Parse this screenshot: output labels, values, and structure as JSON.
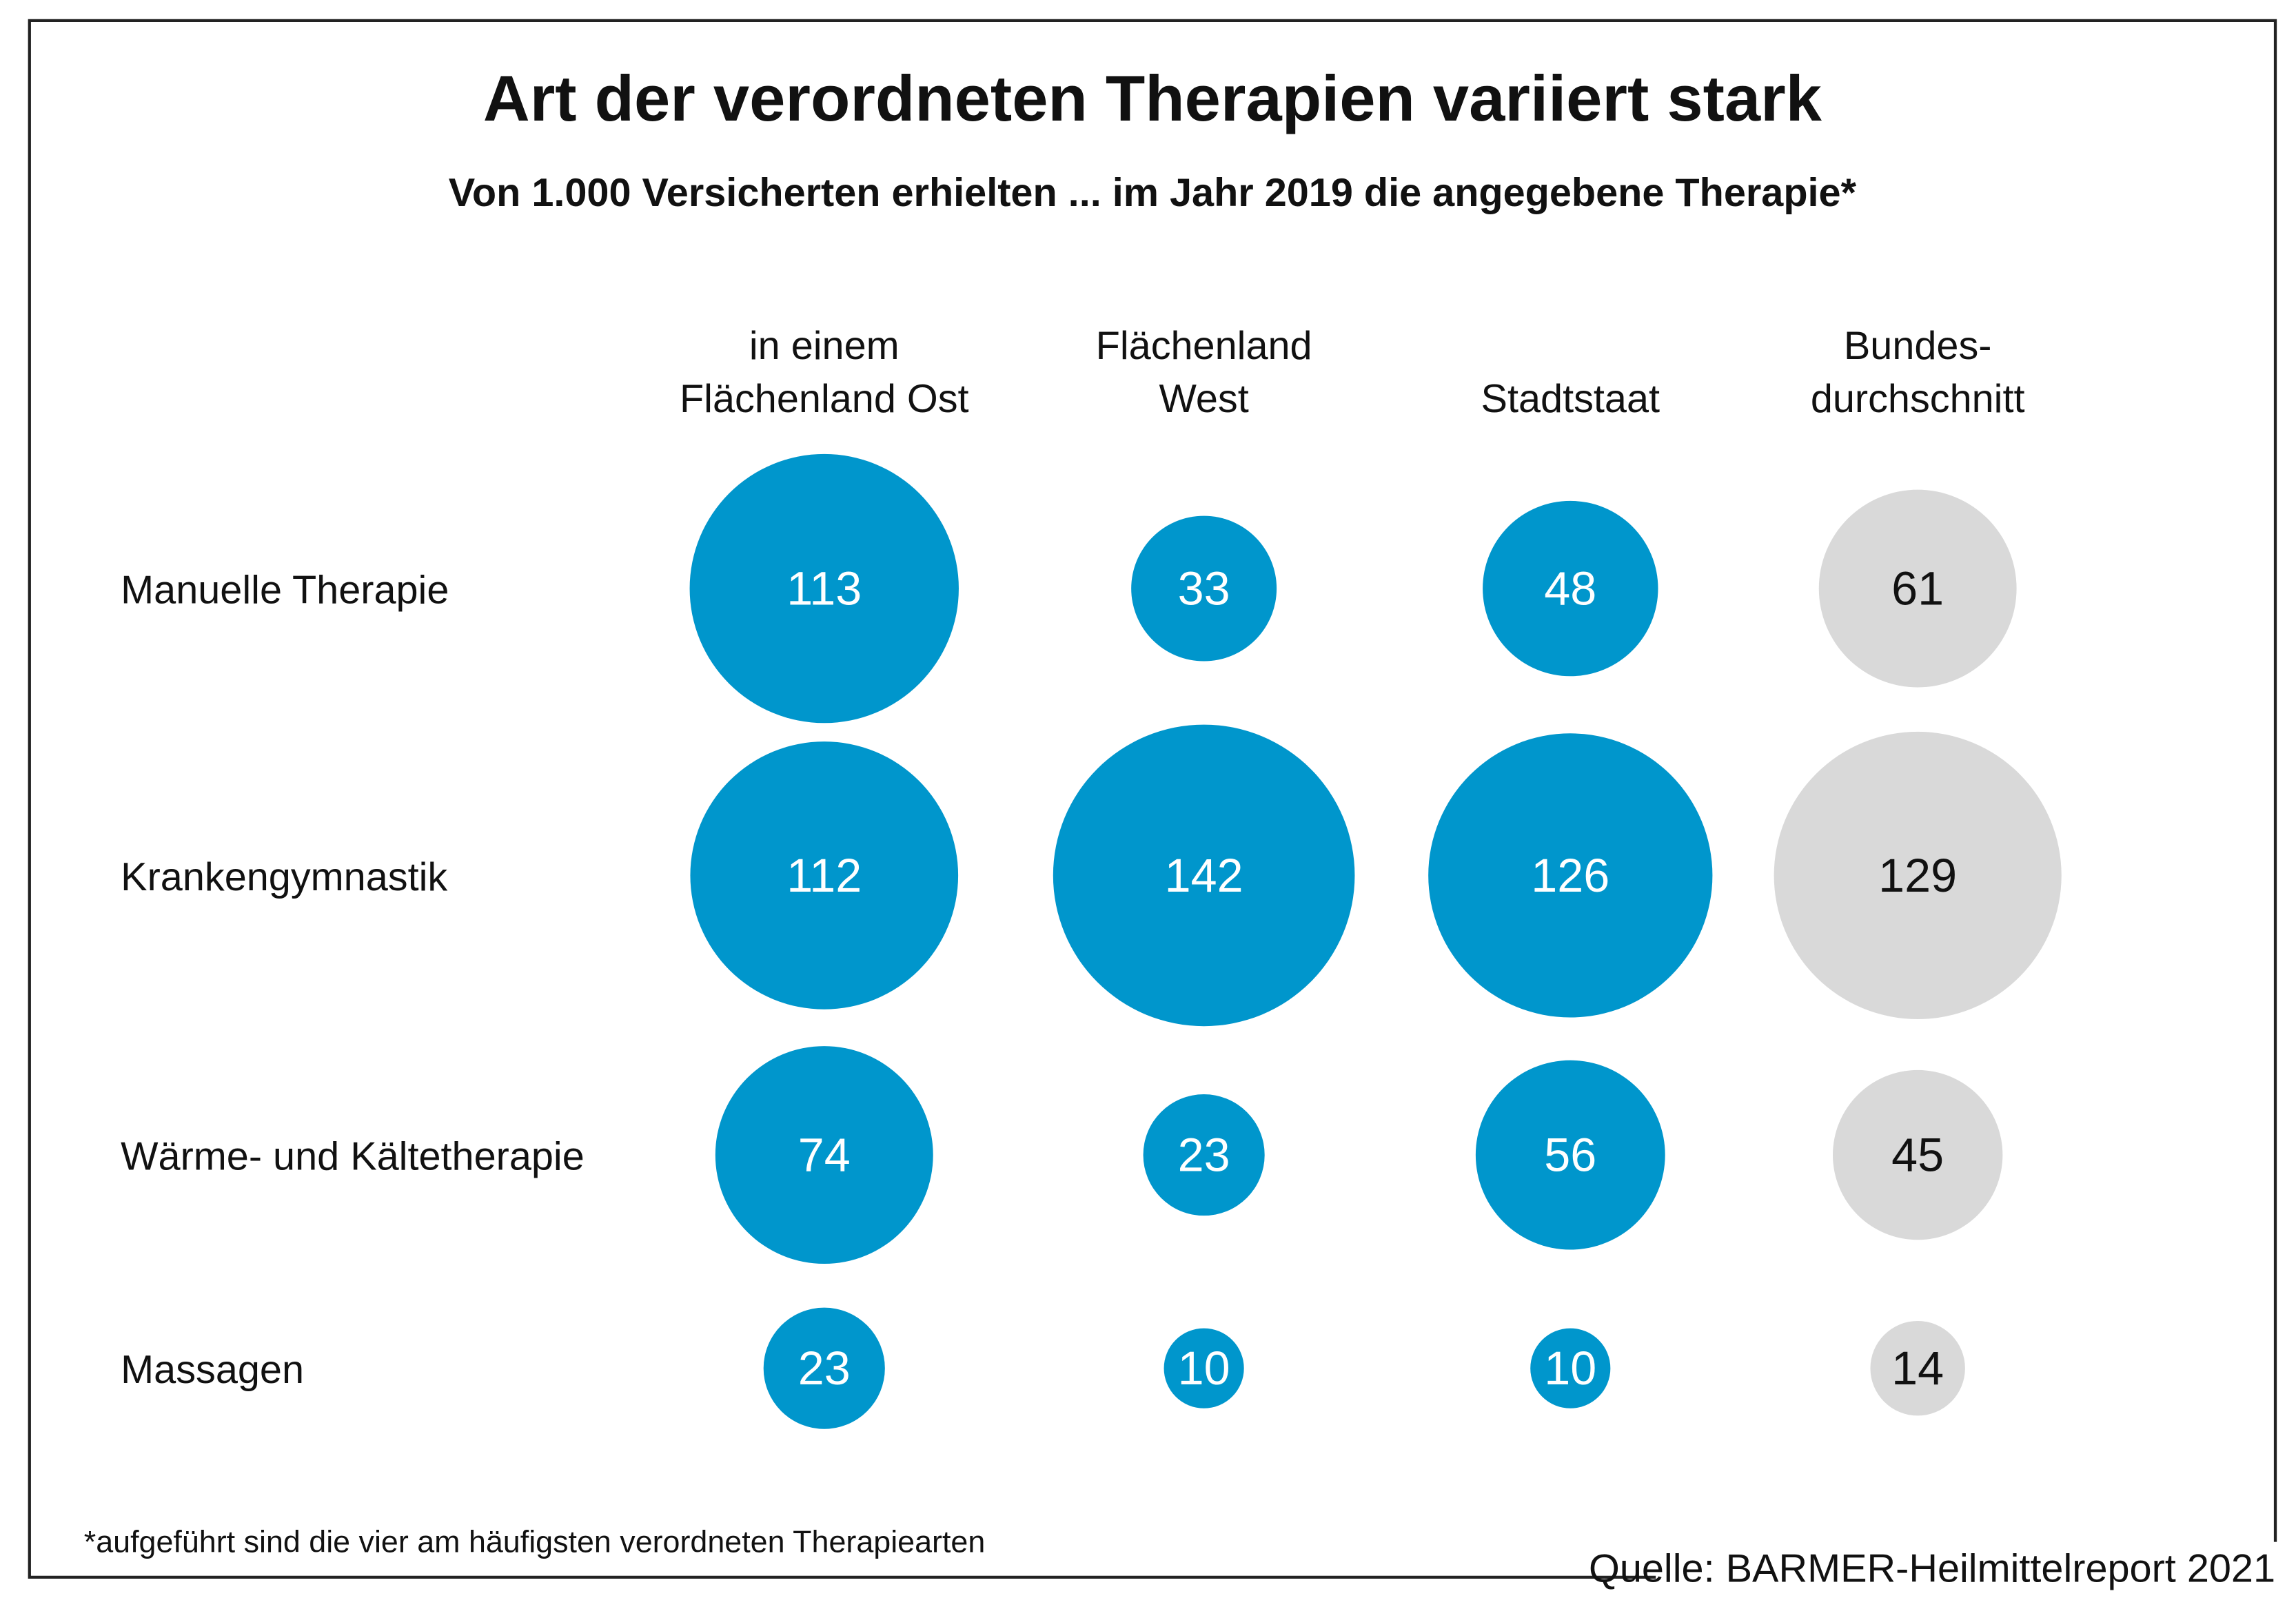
{
  "chart_data": {
    "type": "bubble-matrix",
    "title": "Art der verordneten Therapien variiert stark",
    "subtitle": "Von 1.000 Versicherten erhielten ... im Jahr 2019 die angegebene Therapie*",
    "columns": [
      [
        "in einem",
        "Flächenland Ost"
      ],
      [
        "Flächenland",
        "West"
      ],
      [
        "Stadtstaat"
      ],
      [
        "Bundes-",
        "durchschnitt"
      ]
    ],
    "colors": [
      "#0096cc",
      "#0096cc",
      "#0096cc",
      "#d9d9d9"
    ],
    "series": [
      {
        "name": "Manuelle Therapie",
        "values": [
          113,
          33,
          48,
          61
        ]
      },
      {
        "name": "Krankengymnastik",
        "values": [
          112,
          142,
          126,
          129
        ]
      },
      {
        "name": "Wärme- und Kältetherapie",
        "values": [
          74,
          23,
          56,
          45
        ]
      },
      {
        "name": "Massagen",
        "values": [
          23,
          10,
          10,
          14
        ]
      }
    ],
    "footnote": "*aufgeführt sind die vier am häufigsten verordneten Therapiearten",
    "source": "Quelle: BARMER-Heilmittelreport 2021"
  }
}
